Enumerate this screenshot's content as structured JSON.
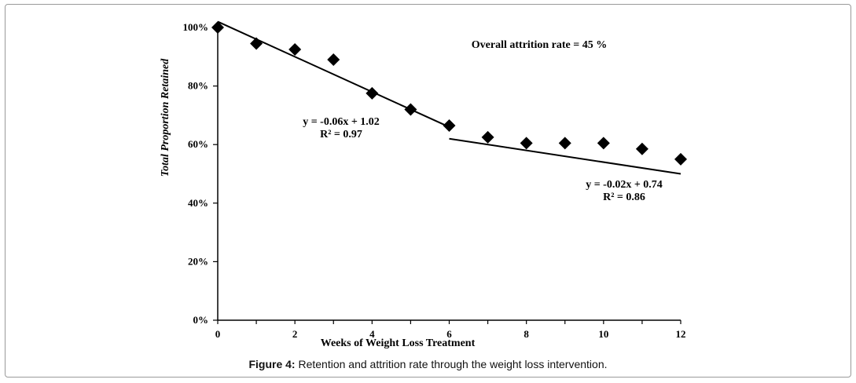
{
  "chart_data": {
    "type": "scatter",
    "xlabel": "Weeks of Weight Loss Treatment",
    "ylabel": "Total Proportion Retained",
    "xlim": [
      0,
      12
    ],
    "ylim": [
      0,
      1
    ],
    "x_ticks": [
      0,
      2,
      4,
      6,
      8,
      10,
      12
    ],
    "x_tick_labels": [
      "0",
      "2",
      "4",
      "6",
      "8",
      "10",
      "12"
    ],
    "y_ticks": [
      0,
      0.2,
      0.4,
      0.6,
      0.8,
      1.0
    ],
    "y_tick_labels": [
      "0%",
      "20%",
      "40%",
      "60%",
      "80%",
      "100%"
    ],
    "grid": false,
    "series": [
      {
        "marker": "diamond",
        "color": "#000000",
        "x": [
          0,
          1,
          2,
          3,
          4,
          5,
          6,
          7,
          8,
          9,
          10,
          11,
          12
        ],
        "y": [
          1.0,
          0.945,
          0.925,
          0.89,
          0.775,
          0.72,
          0.665,
          0.625,
          0.605,
          0.605,
          0.605,
          0.585,
          0.55
        ]
      }
    ],
    "trendlines": [
      {
        "x_range": [
          0,
          6
        ],
        "slope": -0.06,
        "intercept": 1.02,
        "equation": "y = -0.06x + 1.02",
        "r2": "R² = 0.97"
      },
      {
        "x_range": [
          6,
          12
        ],
        "slope": -0.02,
        "intercept": 0.74,
        "equation": "y = -0.02x + 0.74",
        "r2": "R² = 0.86"
      }
    ],
    "annotations": [
      {
        "text": "Overall attrition rate = 45 %"
      }
    ]
  },
  "caption": {
    "label": "Figure 4:",
    "text": " Retention and attrition rate through the weight loss intervention."
  }
}
